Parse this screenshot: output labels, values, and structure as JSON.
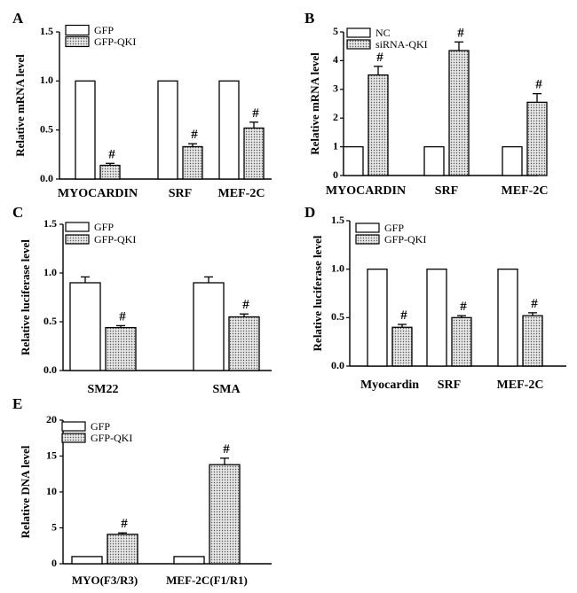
{
  "colors": {
    "stroke": "#000000",
    "background": "#ffffff",
    "dot_fill": "#e4e4e4",
    "dot": "#555555"
  },
  "chart_data": [
    {
      "panel_label": "A",
      "type": "bar",
      "ylabel": "Relative mRNA level",
      "ylim": [
        0,
        1.5
      ],
      "yticks": [
        "0.0",
        "0.5",
        "1.0",
        "1.5"
      ],
      "categories": [
        "MYOCARDIN",
        "SRF",
        "MEF-2C"
      ],
      "series": [
        {
          "name": "GFP",
          "pattern": "open",
          "values": [
            1.0,
            1.0,
            1.0
          ],
          "errors": [
            0,
            0,
            0
          ]
        },
        {
          "name": "GFP-QKI",
          "pattern": "dotted",
          "values": [
            0.14,
            0.33,
            0.52
          ],
          "errors": [
            0.02,
            0.03,
            0.06
          ]
        }
      ],
      "annotations": [
        "#",
        "#",
        "#"
      ],
      "legend_position": "top-left"
    },
    {
      "panel_label": "B",
      "type": "bar",
      "ylabel": "Relative mRNA level",
      "ylim": [
        0,
        5
      ],
      "yticks": [
        "0",
        "1",
        "2",
        "3",
        "4",
        "5"
      ],
      "categories": [
        "MYOCARDIN",
        "SRF",
        "MEF-2C"
      ],
      "series": [
        {
          "name": "NC",
          "pattern": "open",
          "values": [
            1.0,
            1.0,
            1.0
          ],
          "errors": [
            0,
            0,
            0
          ]
        },
        {
          "name": "siRNA-QKI",
          "pattern": "dotted",
          "values": [
            3.5,
            4.35,
            2.55
          ],
          "errors": [
            0.3,
            0.3,
            0.3
          ]
        }
      ],
      "annotations": [
        "#",
        "#",
        "#"
      ],
      "legend_position": "top-left"
    },
    {
      "panel_label": "C",
      "type": "bar",
      "ylabel": "Relative luciferase level",
      "ylim": [
        0,
        1.5
      ],
      "yticks": [
        "0.0",
        "0.5",
        "1.0",
        "1.5"
      ],
      "categories": [
        "SM22",
        "SMA"
      ],
      "series": [
        {
          "name": "GFP",
          "pattern": "open",
          "values": [
            0.9,
            0.9
          ],
          "errors": [
            0.06,
            0.06
          ]
        },
        {
          "name": "GFP-QKI",
          "pattern": "dotted",
          "values": [
            0.44,
            0.55
          ],
          "errors": [
            0.02,
            0.03
          ]
        }
      ],
      "annotations": [
        "#",
        "#"
      ],
      "legend_position": "top-left"
    },
    {
      "panel_label": "D",
      "type": "bar",
      "ylabel": "Relative luciferase level",
      "ylim": [
        0,
        1.5
      ],
      "yticks": [
        "0.0",
        "0.5",
        "1.0",
        "1.5"
      ],
      "categories": [
        "Myocardin",
        "SRF",
        "MEF-2C"
      ],
      "series": [
        {
          "name": "GFP",
          "pattern": "open",
          "values": [
            1.0,
            1.0,
            1.0
          ],
          "errors": [
            0,
            0,
            0
          ]
        },
        {
          "name": "GFP-QKI",
          "pattern": "dotted",
          "values": [
            0.4,
            0.5,
            0.52
          ],
          "errors": [
            0.03,
            0.02,
            0.03
          ]
        }
      ],
      "annotations": [
        "#",
        "#",
        "#"
      ],
      "legend_position": "top-left"
    },
    {
      "panel_label": "E",
      "type": "bar",
      "ylabel": "Relative DNA level",
      "ylim": [
        0,
        20
      ],
      "yticks": [
        "0",
        "5",
        "10",
        "15",
        "20"
      ],
      "categories": [
        "MYO(F3/R3)",
        "MEF-2C(F1/R1)"
      ],
      "series": [
        {
          "name": "GFP",
          "pattern": "open",
          "values": [
            1.0,
            1.0
          ],
          "errors": [
            0,
            0
          ]
        },
        {
          "name": "GFP-QKI",
          "pattern": "dotted",
          "values": [
            4.1,
            13.8
          ],
          "errors": [
            0.2,
            0.9
          ]
        }
      ],
      "annotations": [
        "#",
        "#"
      ],
      "legend_position": "top-left"
    }
  ]
}
